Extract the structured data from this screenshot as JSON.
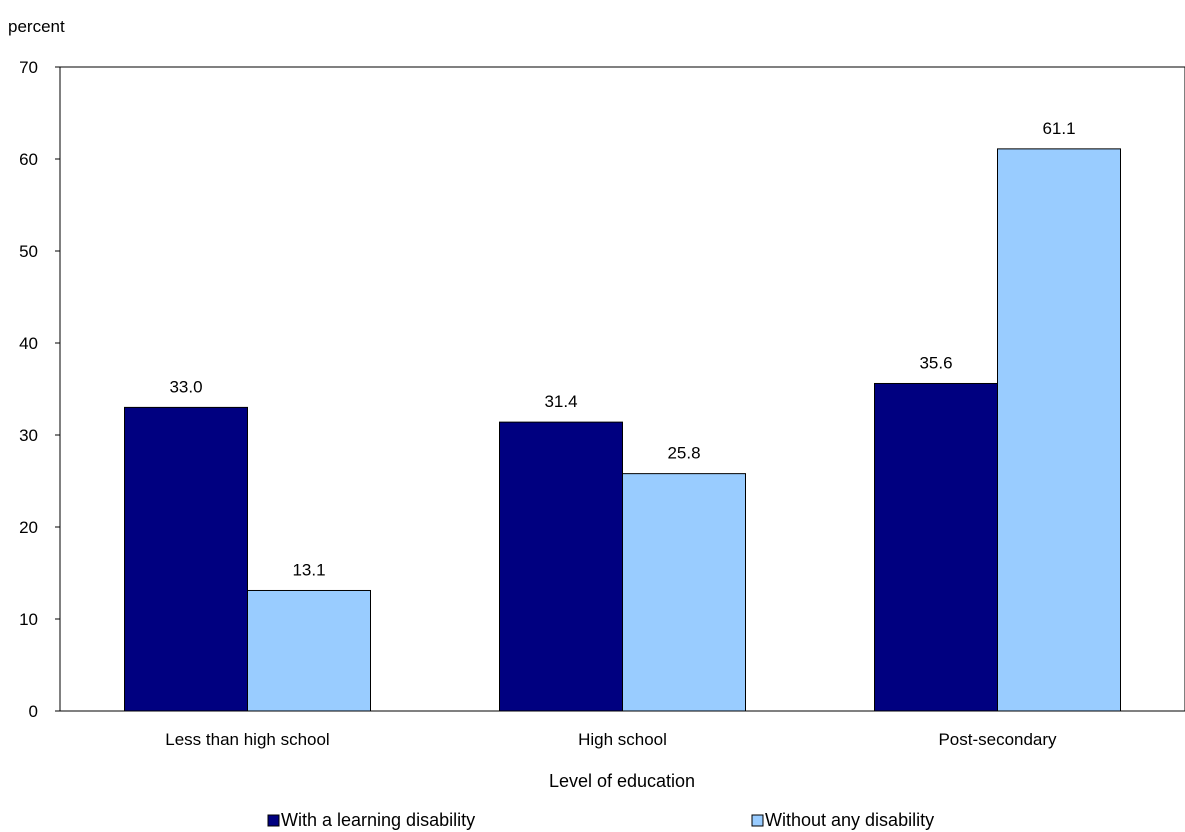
{
  "chart_data": {
    "type": "bar",
    "ylabel": "percent",
    "xlabel": "Level of education",
    "categories": [
      "Less than high school",
      "High school",
      "Post-secondary"
    ],
    "series": [
      {
        "name": "With a learning disability",
        "values": [
          33.0,
          31.4,
          35.6
        ],
        "labels": [
          "33.0",
          "31.4",
          "35.6"
        ],
        "color": "#000080"
      },
      {
        "name": "Without any disability",
        "values": [
          13.1,
          25.8,
          61.1
        ],
        "labels": [
          "13.1",
          "25.8",
          "61.1"
        ],
        "color": "#99ccff"
      }
    ],
    "ylim": [
      0,
      70
    ],
    "yticks": [
      "0",
      "10",
      "20",
      "30",
      "40",
      "50",
      "60",
      "70"
    ],
    "grid": false,
    "legend": "bottom"
  }
}
